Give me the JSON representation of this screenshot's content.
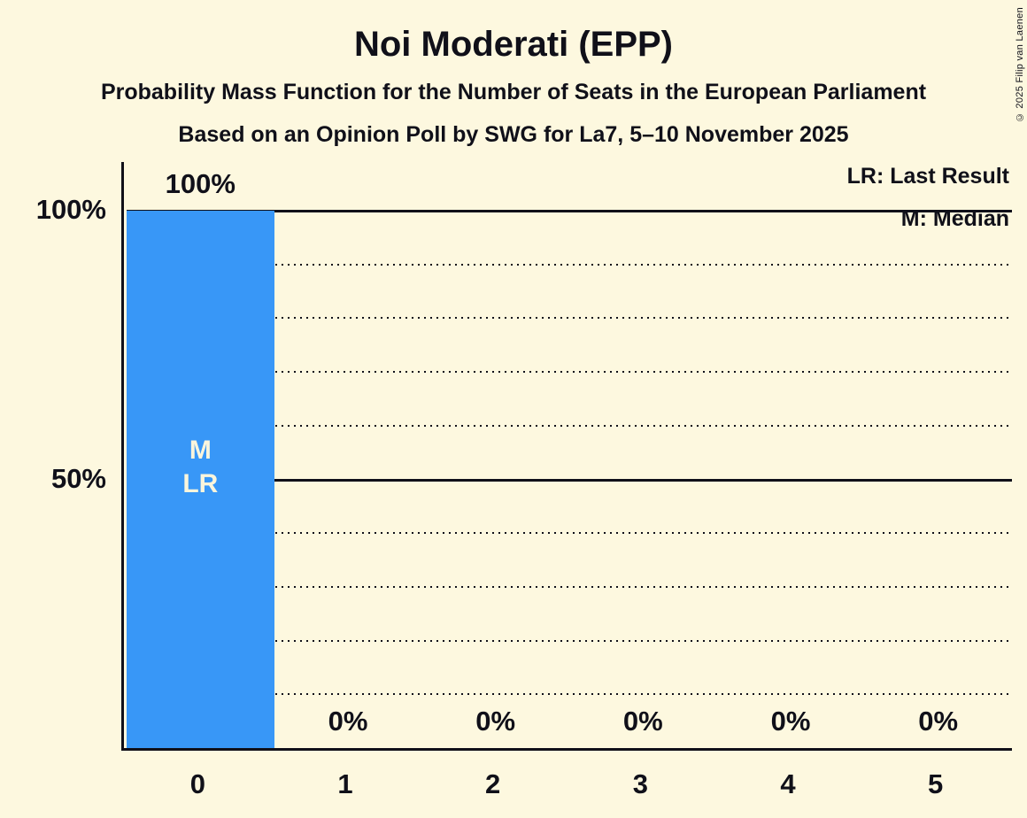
{
  "header": {
    "title": "Noi Moderati (EPP)",
    "subtitle": "Probability Mass Function for the Number of Seats in the European Parliament",
    "source": "Based on an Opinion Poll by SWG for La7, 5–10 November 2025"
  },
  "copyright": "© 2025 Filip van Laenen",
  "legend": {
    "last_result": "LR: Last Result",
    "median": "M: Median"
  },
  "colors": {
    "background": "#FDF8DF",
    "bar": "#3897F7",
    "ink": "#101019",
    "bar_text": "#FAF5DC"
  },
  "chart_data": {
    "type": "bar",
    "title": "Noi Moderati (EPP)",
    "categories": [
      "0",
      "1",
      "2",
      "3",
      "4",
      "5"
    ],
    "values": [
      100,
      0,
      0,
      0,
      0,
      0
    ],
    "value_labels": [
      "100%",
      "0%",
      "0%",
      "0%",
      "0%",
      "0%"
    ],
    "ylim": [
      0,
      100
    ],
    "y_axis_labels": [
      {
        "text": "100%",
        "value": 100
      },
      {
        "text": "50%",
        "value": 50
      }
    ],
    "gridlines": [
      {
        "value": 10,
        "style": "dotted"
      },
      {
        "value": 20,
        "style": "dotted"
      },
      {
        "value": 30,
        "style": "dotted"
      },
      {
        "value": 40,
        "style": "dotted"
      },
      {
        "value": 50,
        "style": "solid"
      },
      {
        "value": 60,
        "style": "dotted"
      },
      {
        "value": 70,
        "style": "dotted"
      },
      {
        "value": 80,
        "style": "dotted"
      },
      {
        "value": 90,
        "style": "dotted"
      },
      {
        "value": 100,
        "style": "solid"
      }
    ],
    "markers": {
      "category": "0",
      "labels": [
        "M",
        "LR"
      ]
    }
  }
}
